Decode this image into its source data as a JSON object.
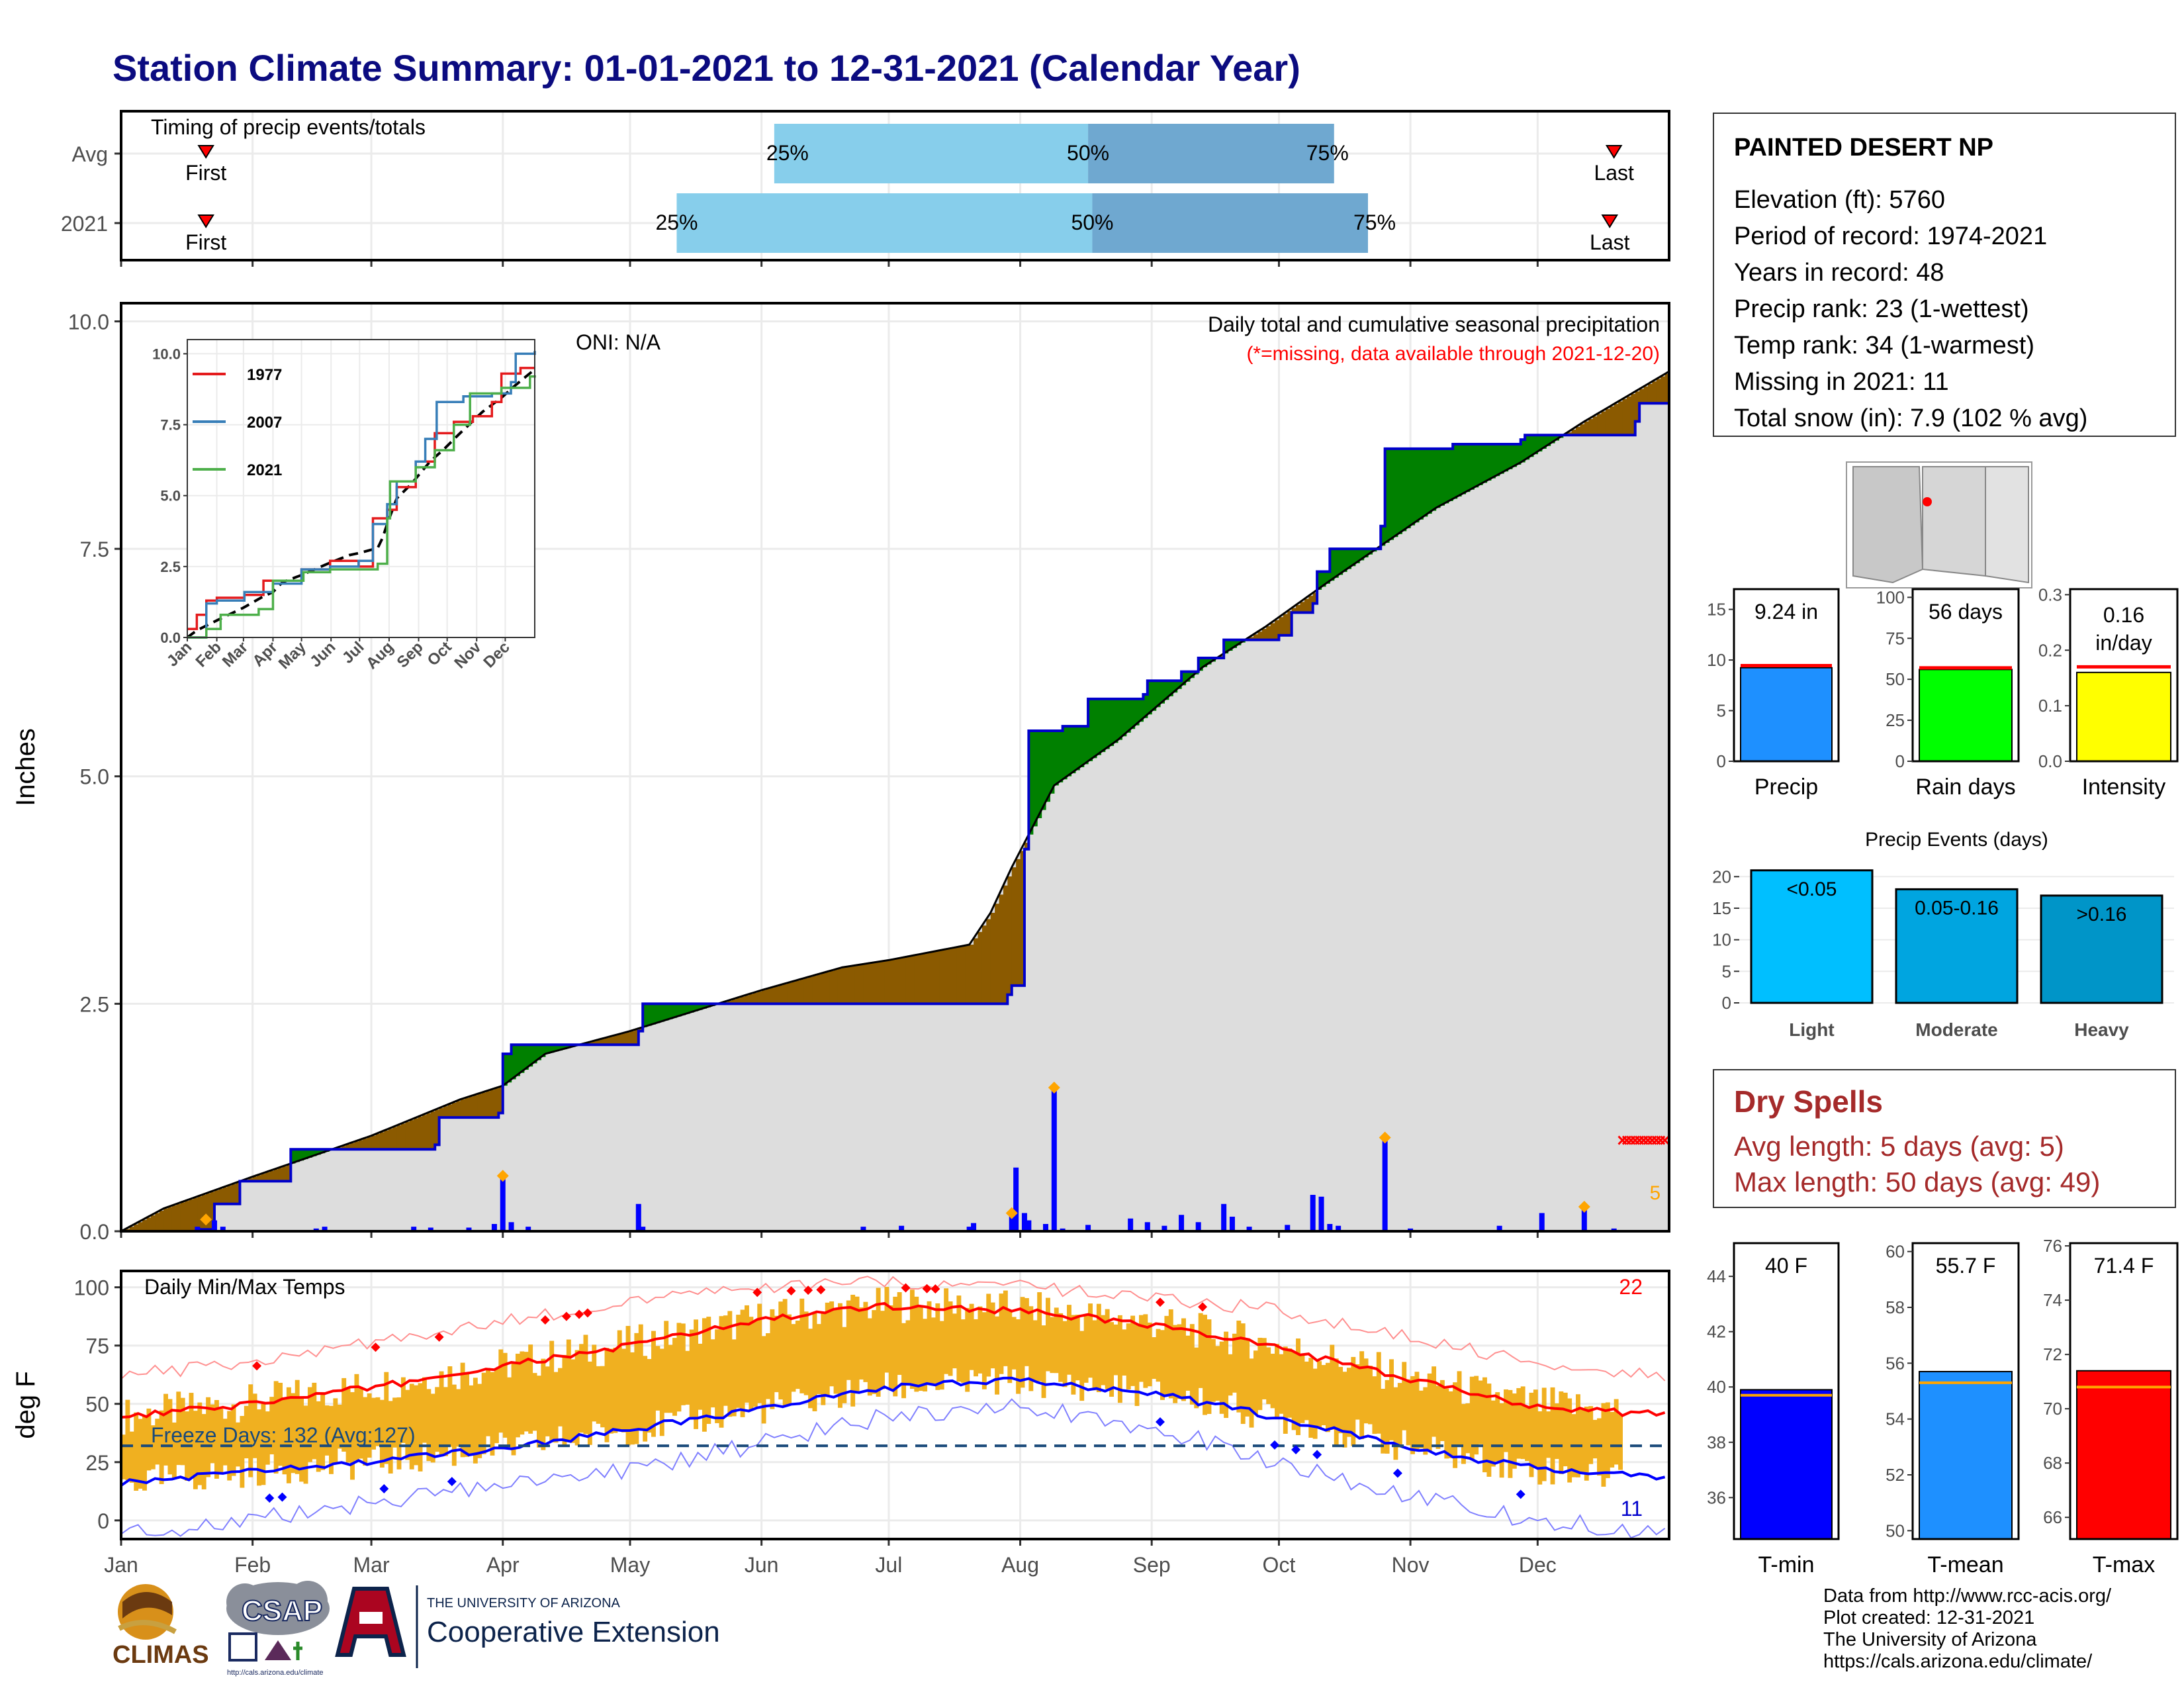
{
  "title": "Station Climate Summary: 01-01-2021 to 12-31-2021 (Calendar Year)",
  "station": {
    "name": "PAINTED DESERT NP",
    "lines": [
      "Elevation (ft): 5760",
      "Period of record: 1974-2021",
      "Years in record: 48",
      "Precip rank: 23 (1-wettest)",
      "Temp rank: 34 (1-warmest)",
      "Missing in 2021: 11",
      "Total snow (in): 7.9 (102 % avg)"
    ]
  },
  "dry_spells": {
    "title": "Dry Spells",
    "avg_length": "Avg length: 5 days (avg: 5)",
    "max_length": "Max length: 50 days (avg: 49)"
  },
  "credits": [
    "Data from http://www.rcc-acis.org/",
    "Plot created: 12-31-2021",
    "The University of Arizona",
    "https://cals.arizona.edu/climate/"
  ],
  "logos": {
    "climas": "CLIMAS",
    "csap": "CSAP",
    "csap_url": "http://cals.arizona.edu/climate",
    "ua_line1": "THE UNIVERSITY OF ARIZONA",
    "ua_line2": "Cooperative Extension"
  },
  "colors": {
    "navy": "#0b0b80",
    "brown": "#8b5a00",
    "green": "#008000",
    "grey": "#dddddd",
    "blue": "#0000ff",
    "lightblue": "#87ceeb",
    "midblue": "#6fa8d0",
    "orange": "#f0b020",
    "red": "#ff0000"
  },
  "chart_data": [
    {
      "id": "timing",
      "type": "bar",
      "label": "Timing of precip events/totals",
      "ytick_labels": [
        "Avg",
        "2021"
      ],
      "first_label": "First",
      "last_label": "Last",
      "rows": [
        {
          "name": "Avg",
          "first_doy": 20,
          "p25_doy": 154,
          "p50_doy": 228,
          "p75_doy": 286,
          "last_doy": 352,
          "labels": [
            "25%",
            "50%",
            "75%"
          ]
        },
        {
          "name": "2021",
          "first_doy": 20,
          "p25_doy": 131,
          "p50_doy": 229,
          "p75_doy": 294,
          "last_doy": 351,
          "labels": [
            "25%",
            "50%",
            "75%"
          ]
        }
      ]
    },
    {
      "id": "precip-main",
      "type": "area",
      "title": "Daily total and cumulative seasonal precipitation",
      "subtitle": "(*=missing, data available through 2021-12-20)",
      "oni": "ONI: N/A",
      "ylabel": "Inches",
      "ylim": [
        0,
        10.2
      ],
      "yticks": [
        0.0,
        2.5,
        5.0,
        7.5,
        10.0
      ],
      "ytick_labels": [
        "0.0",
        "2.5",
        "5.0",
        "7.5",
        "10.0"
      ],
      "month_labels": [
        "Jan",
        "Feb",
        "Mar",
        "Apr",
        "May",
        "Jun",
        "Jul",
        "Aug",
        "Sep",
        "Oct",
        "Nov",
        "Dec"
      ],
      "count_label": "5",
      "average_cumulative": [
        [
          0,
          0
        ],
        [
          10,
          0.25
        ],
        [
          31,
          0.6
        ],
        [
          59,
          1.05
        ],
        [
          80,
          1.45
        ],
        [
          90,
          1.6
        ],
        [
          100,
          1.95
        ],
        [
          120,
          2.2
        ],
        [
          151,
          2.65
        ],
        [
          170,
          2.9
        ],
        [
          181,
          2.98
        ],
        [
          200,
          3.15
        ],
        [
          205,
          3.5
        ],
        [
          210,
          4.0
        ],
        [
          220,
          4.9
        ],
        [
          235,
          5.4
        ],
        [
          255,
          6.2
        ],
        [
          270,
          6.65
        ],
        [
          285,
          7.15
        ],
        [
          310,
          7.95
        ],
        [
          330,
          8.45
        ],
        [
          345,
          8.9
        ],
        [
          365,
          9.45
        ]
      ],
      "cumulative_2021": [
        [
          0,
          0
        ],
        [
          18,
          0.02
        ],
        [
          22,
          0.3
        ],
        [
          28,
          0.55
        ],
        [
          40,
          0.9
        ],
        [
          74,
          0.95
        ],
        [
          75,
          1.25
        ],
        [
          89,
          1.3
        ],
        [
          90,
          1.95
        ],
        [
          92,
          2.05
        ],
        [
          122,
          2.2
        ],
        [
          123,
          2.5
        ],
        [
          209,
          2.6
        ],
        [
          210,
          2.7
        ],
        [
          213,
          4.2
        ],
        [
          214,
          5.5
        ],
        [
          222,
          5.55
        ],
        [
          228,
          5.85
        ],
        [
          241,
          5.9
        ],
        [
          242,
          6.05
        ],
        [
          250,
          6.15
        ],
        [
          254,
          6.3
        ],
        [
          260,
          6.5
        ],
        [
          273,
          6.55
        ],
        [
          276,
          6.8
        ],
        [
          281,
          6.9
        ],
        [
          282,
          7.25
        ],
        [
          285,
          7.5
        ],
        [
          297,
          7.75
        ],
        [
          298,
          8.6
        ],
        [
          314,
          8.65
        ],
        [
          330,
          8.7
        ],
        [
          331,
          8.75
        ],
        [
          357,
          8.9
        ],
        [
          358,
          9.1
        ],
        [
          365,
          9.24
        ]
      ],
      "daily_bars": [
        [
          18,
          0.05
        ],
        [
          22,
          0.12
        ],
        [
          24,
          0.05
        ],
        [
          46,
          0.03
        ],
        [
          48,
          0.05
        ],
        [
          69,
          0.05
        ],
        [
          73,
          0.04
        ],
        [
          82,
          0.04
        ],
        [
          88,
          0.08
        ],
        [
          90,
          0.58
        ],
        [
          92,
          0.1
        ],
        [
          96,
          0.05
        ],
        [
          122,
          0.3
        ],
        [
          123,
          0.05
        ],
        [
          175,
          0.05
        ],
        [
          184,
          0.06
        ],
        [
          200,
          0.05
        ],
        [
          201,
          0.09
        ],
        [
          210,
          0.17
        ],
        [
          211,
          0.7
        ],
        [
          213,
          0.2
        ],
        [
          214,
          0.12
        ],
        [
          218,
          0.08
        ],
        [
          220,
          1.55
        ],
        [
          222,
          0.03
        ],
        [
          228,
          0.07
        ],
        [
          238,
          0.14
        ],
        [
          242,
          0.1
        ],
        [
          246,
          0.06
        ],
        [
          250,
          0.18
        ],
        [
          254,
          0.1
        ],
        [
          260,
          0.3
        ],
        [
          262,
          0.16
        ],
        [
          266,
          0.05
        ],
        [
          275,
          0.07
        ],
        [
          281,
          0.4
        ],
        [
          283,
          0.38
        ],
        [
          285,
          0.08
        ],
        [
          287,
          0.06
        ],
        [
          298,
          1.0
        ],
        [
          304,
          0.03
        ],
        [
          325,
          0.06
        ],
        [
          335,
          0.2
        ],
        [
          345,
          0.24
        ],
        [
          352,
          0.03
        ]
      ],
      "highlight_days": [
        20,
        90,
        210,
        220,
        298,
        345
      ],
      "missing_days": [
        354,
        355,
        356,
        357,
        358,
        359,
        360,
        361,
        362,
        363,
        364
      ],
      "inset": {
        "ylim": [
          0,
          10.5
        ],
        "ytick_labels": [
          "0.0",
          "2.5",
          "5.0",
          "7.5",
          "10.0"
        ],
        "xtick_labels": [
          "Jan",
          "Feb",
          "Mar",
          "Apr",
          "May",
          "Jun",
          "Jul",
          "Aug",
          "Sep",
          "Oct",
          "Nov",
          "Dec"
        ],
        "series": [
          {
            "name": "1977",
            "color": "#e41a1c",
            "values": [
              [
                0,
                0.3
              ],
              [
                10,
                0.8
              ],
              [
                20,
                1.3
              ],
              [
                31,
                1.4
              ],
              [
                60,
                1.5
              ],
              [
                80,
                2.0
              ],
              [
                120,
                2.4
              ],
              [
                150,
                2.7
              ],
              [
                180,
                2.5
              ],
              [
                195,
                4.2
              ],
              [
                210,
                4.5
              ],
              [
                220,
                5.3
              ],
              [
                240,
                6.2
              ],
              [
                260,
                7.2
              ],
              [
                280,
                7.6
              ],
              [
                300,
                7.8
              ],
              [
                320,
                8.3
              ],
              [
                330,
                9.3
              ],
              [
                350,
                9.5
              ],
              [
                365,
                9.5
              ]
            ]
          },
          {
            "name": "2007",
            "color": "#377eb8",
            "values": [
              [
                0,
                0
              ],
              [
                20,
                1.2
              ],
              [
                31,
                1.3
              ],
              [
                60,
                1.6
              ],
              [
                90,
                1.9
              ],
              [
                120,
                2.4
              ],
              [
                150,
                2.5
              ],
              [
                180,
                2.7
              ],
              [
                195,
                4.0
              ],
              [
                210,
                4.7
              ],
              [
                220,
                5.5
              ],
              [
                240,
                6.2
              ],
              [
                250,
                7.0
              ],
              [
                262,
                8.3
              ],
              [
                290,
                8.5
              ],
              [
                320,
                8.6
              ],
              [
                340,
                9.0
              ],
              [
                345,
                10.0
              ],
              [
                365,
                10.1
              ]
            ]
          },
          {
            "name": "2021",
            "color": "#4daf4a",
            "values": [
              [
                0,
                0
              ],
              [
                20,
                0.3
              ],
              [
                35,
                0.8
              ],
              [
                75,
                1.0
              ],
              [
                90,
                2.0
              ],
              [
                122,
                2.3
              ],
              [
                150,
                2.4
              ],
              [
                200,
                2.6
              ],
              [
                210,
                4.2
              ],
              [
                213,
                5.5
              ],
              [
                240,
                6.0
              ],
              [
                260,
                6.6
              ],
              [
                280,
                7.5
              ],
              [
                297,
                8.6
              ],
              [
                330,
                8.8
              ],
              [
                360,
                9.2
              ],
              [
                365,
                9.24
              ]
            ]
          }
        ]
      }
    },
    {
      "id": "temps",
      "type": "line",
      "label": "Daily Min/Max Temps",
      "ylabel": "deg F",
      "ylim": [
        -8,
        107
      ],
      "yticks": [
        0,
        25,
        50,
        75,
        100
      ],
      "ytick_labels": [
        "0",
        "25",
        "50",
        "75",
        "100"
      ],
      "month_labels": [
        "Jan",
        "Feb",
        "Mar",
        "Apr",
        "May",
        "Jun",
        "Jul",
        "Aug",
        "Sep",
        "Oct",
        "Nov",
        "Dec"
      ],
      "freeze_line": 32,
      "freeze_label": "Freeze Days: 132 (Avg:127)",
      "hot_count": "22",
      "cold_count": "11",
      "avg_max": [
        [
          0,
          44
        ],
        [
          31,
          50
        ],
        [
          59,
          57
        ],
        [
          90,
          66
        ],
        [
          120,
          75
        ],
        [
          151,
          86
        ],
        [
          181,
          92
        ],
        [
          212,
          90
        ],
        [
          243,
          84
        ],
        [
          273,
          74
        ],
        [
          304,
          60
        ],
        [
          334,
          49
        ],
        [
          365,
          45
        ]
      ],
      "avg_min": [
        [
          0,
          16
        ],
        [
          31,
          21
        ],
        [
          59,
          25
        ],
        [
          90,
          31
        ],
        [
          120,
          39
        ],
        [
          151,
          48
        ],
        [
          181,
          57
        ],
        [
          212,
          60
        ],
        [
          243,
          55
        ],
        [
          273,
          44
        ],
        [
          304,
          31
        ],
        [
          334,
          22
        ],
        [
          365,
          18
        ]
      ],
      "record_max": [
        [
          0,
          62
        ],
        [
          31,
          68
        ],
        [
          59,
          76
        ],
        [
          90,
          85
        ],
        [
          120,
          94
        ],
        [
          151,
          100
        ],
        [
          181,
          102
        ],
        [
          212,
          100
        ],
        [
          243,
          96
        ],
        [
          273,
          90
        ],
        [
          304,
          78
        ],
        [
          334,
          68
        ],
        [
          365,
          62
        ]
      ],
      "record_min": [
        [
          0,
          -5
        ],
        [
          31,
          0
        ],
        [
          59,
          8
        ],
        [
          90,
          15
        ],
        [
          120,
          22
        ],
        [
          151,
          33
        ],
        [
          181,
          45
        ],
        [
          212,
          50
        ],
        [
          243,
          40
        ],
        [
          273,
          25
        ],
        [
          304,
          10
        ],
        [
          334,
          0
        ],
        [
          365,
          -5
        ]
      ]
    },
    {
      "id": "precip-total",
      "type": "bar",
      "ylim": [
        0,
        17
      ],
      "ytick_labels": [
        "0",
        "5",
        "10",
        "15"
      ],
      "avg": 9.45,
      "value": 9.24,
      "value_label": "9.24 in",
      "xlabel": "Precip",
      "color": "#1e90ff"
    },
    {
      "id": "rain-days",
      "type": "bar",
      "ylim": [
        0,
        105
      ],
      "ytick_labels": [
        "0",
        "25",
        "50",
        "75",
        "100"
      ],
      "avg": 57,
      "value": 56,
      "value_label": "56 days",
      "xlabel": "Rain days",
      "color": "#00ff00"
    },
    {
      "id": "intensity",
      "type": "bar",
      "ylim": [
        0,
        0.31
      ],
      "ytick_labels": [
        "0.0",
        "0.1",
        "0.2",
        "0.3"
      ],
      "avg": 0.17,
      "value": 0.16,
      "value_label": [
        "0.16",
        "in/day"
      ],
      "xlabel": "Intensity",
      "color": "#ffff00"
    },
    {
      "id": "precip-events",
      "type": "bar",
      "title": "Precip Events (days)",
      "ylim": [
        0,
        21.5
      ],
      "ytick_labels": [
        "0",
        "5",
        "10",
        "15",
        "20"
      ],
      "categories": [
        "Light",
        "Moderate",
        "Heavy"
      ],
      "values": [
        21,
        18,
        17
      ],
      "bar_labels": [
        "<0.05",
        "0.05-0.16",
        ">0.16"
      ],
      "colors": [
        "#00bfff",
        "#00a5e0",
        "#0095c8"
      ]
    },
    {
      "id": "t-min",
      "type": "bar",
      "ylim": [
        34.5,
        45.2
      ],
      "ytick_labels": [
        "36",
        "38",
        "40",
        "42",
        "44"
      ],
      "yticks": [
        36,
        38,
        40,
        42,
        44
      ],
      "value": 39.9,
      "avg": 39.7,
      "value_label": "40 F",
      "xlabel": "T-min",
      "color": "#0000ff"
    },
    {
      "id": "t-mean",
      "type": "bar",
      "ylim": [
        49.7,
        60.3
      ],
      "ytick_labels": [
        "50",
        "52",
        "54",
        "56",
        "58",
        "60"
      ],
      "yticks": [
        50,
        52,
        54,
        56,
        58,
        60
      ],
      "value": 55.7,
      "avg": 55.3,
      "value_label": "55.7 F",
      "xlabel": "T-mean",
      "color": "#1e90ff"
    },
    {
      "id": "t-max",
      "type": "bar",
      "ylim": [
        65.2,
        76.1
      ],
      "ytick_labels": [
        "66",
        "68",
        "70",
        "72",
        "74",
        "76"
      ],
      "yticks": [
        66,
        68,
        70,
        72,
        74,
        76
      ],
      "value": 71.4,
      "avg": 70.8,
      "value_label": "71.4 F",
      "xlabel": "T-max",
      "color": "#ff0000"
    }
  ]
}
